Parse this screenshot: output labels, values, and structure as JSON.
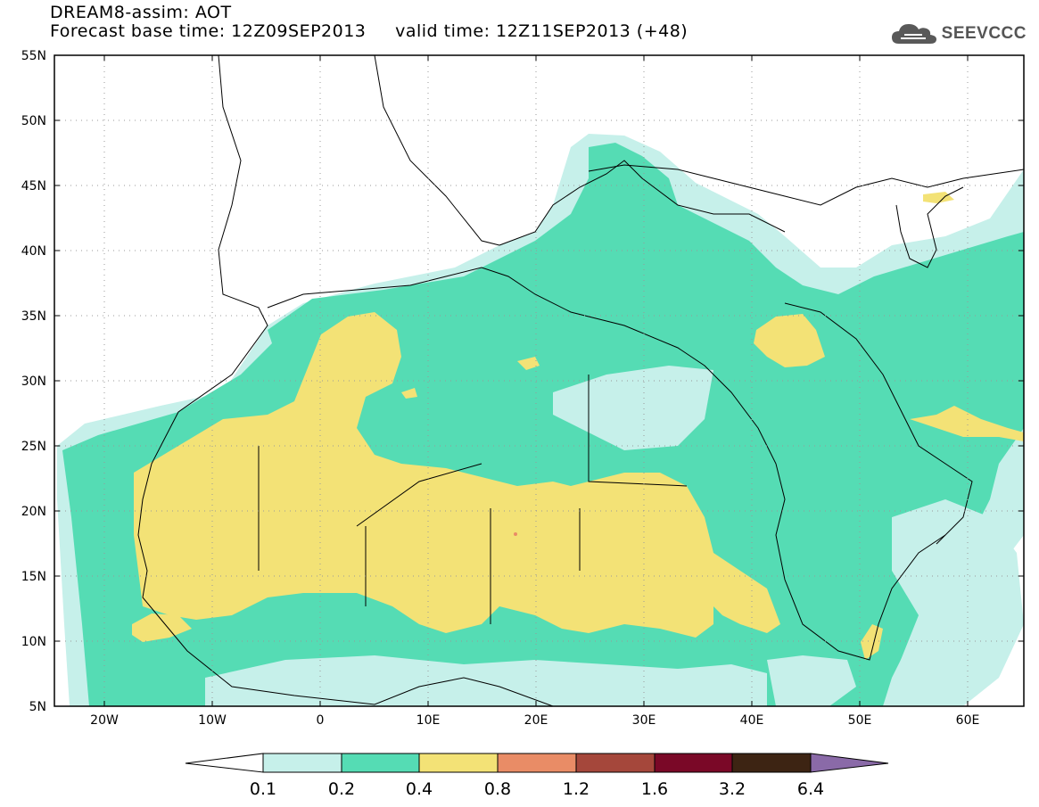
{
  "header": {
    "title": "DREAM8-assim: AOT",
    "base_time": "Forecast base time: 12Z09SEP2013",
    "valid_time": "valid time: 12Z11SEP2013 (+48)"
  },
  "logo": {
    "text": "SEEVCCC",
    "icon": "cloud-icon"
  },
  "map": {
    "lon_range": [
      -25,
      65
    ],
    "lat_range": [
      5,
      55
    ],
    "lat_ticks": [
      "5N",
      "10N",
      "15N",
      "20N",
      "25N",
      "30N",
      "35N",
      "40N",
      "45N",
      "50N",
      "55N"
    ],
    "lon_ticks": [
      "20W",
      "10W",
      "0",
      "10E",
      "20E",
      "30E",
      "40E",
      "50E",
      "60E"
    ],
    "grid": "dotted"
  },
  "colorbar": {
    "labels": [
      "0.1",
      "0.2",
      "0.4",
      "0.8",
      "1.2",
      "1.6",
      "3.2",
      "6.4"
    ],
    "colors": [
      "#ffffff",
      "#c6f0ea",
      "#55dcb4",
      "#f3e276",
      "#e98c66",
      "#a5473b",
      "#7a0827",
      "#3d2413",
      "#8a6aa8"
    ]
  }
}
